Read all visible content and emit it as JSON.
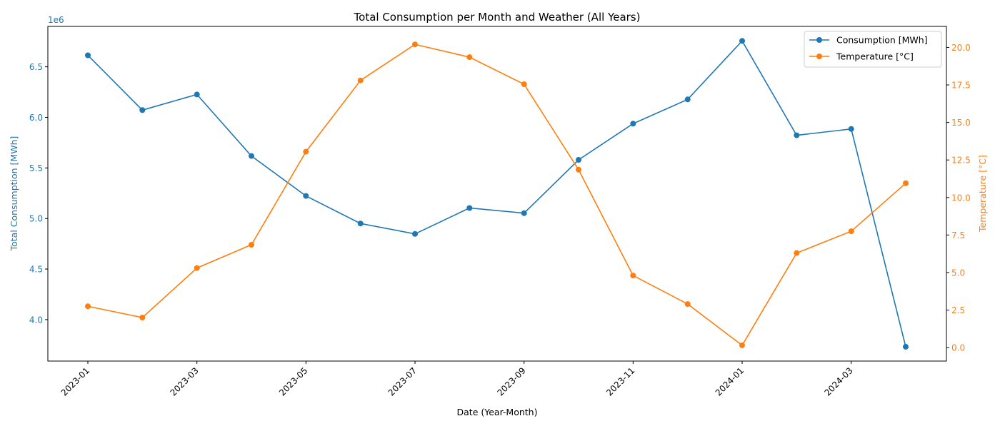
{
  "chart_data": {
    "type": "line",
    "title": "Total Consumption per Month and Weather (All Years)",
    "xlabel": "Date (Year-Month)",
    "ylabel_left": "Total Consumption [MWh]",
    "ylabel_right": "Temperature [°C]",
    "left_axis_offset_label": "1e6",
    "x": [
      "2023-01",
      "2023-02",
      "2023-03",
      "2023-04",
      "2023-05",
      "2023-06",
      "2023-07",
      "2023-08",
      "2023-09",
      "2023-10",
      "2023-11",
      "2023-12",
      "2024-01",
      "2024-02",
      "2024-03",
      "2024-04"
    ],
    "x_tick_labels": [
      "2023-01",
      "2023-03",
      "2023-05",
      "2023-07",
      "2023-09",
      "2023-11",
      "2024-01",
      "2024-03"
    ],
    "y_left_ticks": [
      "4.0",
      "4.5",
      "5.0",
      "5.5",
      "6.0",
      "6.5"
    ],
    "y_left_tick_values": [
      4.0,
      4.5,
      5.0,
      5.5,
      6.0,
      6.5
    ],
    "y_left_range": [
      3.59,
      6.9
    ],
    "y_right_ticks": [
      "0.0",
      "2.5",
      "5.0",
      "7.5",
      "10.0",
      "12.5",
      "15.0",
      "17.5",
      "20.0"
    ],
    "y_right_tick_values": [
      0.0,
      2.5,
      5.0,
      7.5,
      10.0,
      12.5,
      15.0,
      17.5,
      20.0
    ],
    "y_right_range": [
      -0.9,
      21.4
    ],
    "legend_position": "top-right",
    "series": [
      {
        "name": "Consumption [MWh]",
        "axis": "left",
        "color": "#1f77b4",
        "values": [
          6614000,
          6072000,
          6227000,
          5618000,
          5223000,
          4951000,
          4848000,
          5104000,
          5053000,
          5580000,
          5938000,
          6178000,
          6757000,
          5823000,
          5886000,
          3732000
        ]
      },
      {
        "name": "Temperature [°C]",
        "axis": "right",
        "color": "#ff7f0e",
        "values": [
          2.75,
          2.0,
          5.3,
          6.85,
          13.05,
          17.8,
          20.2,
          19.35,
          17.55,
          11.85,
          4.8,
          2.9,
          0.15,
          6.3,
          7.75,
          10.95
        ]
      }
    ]
  }
}
